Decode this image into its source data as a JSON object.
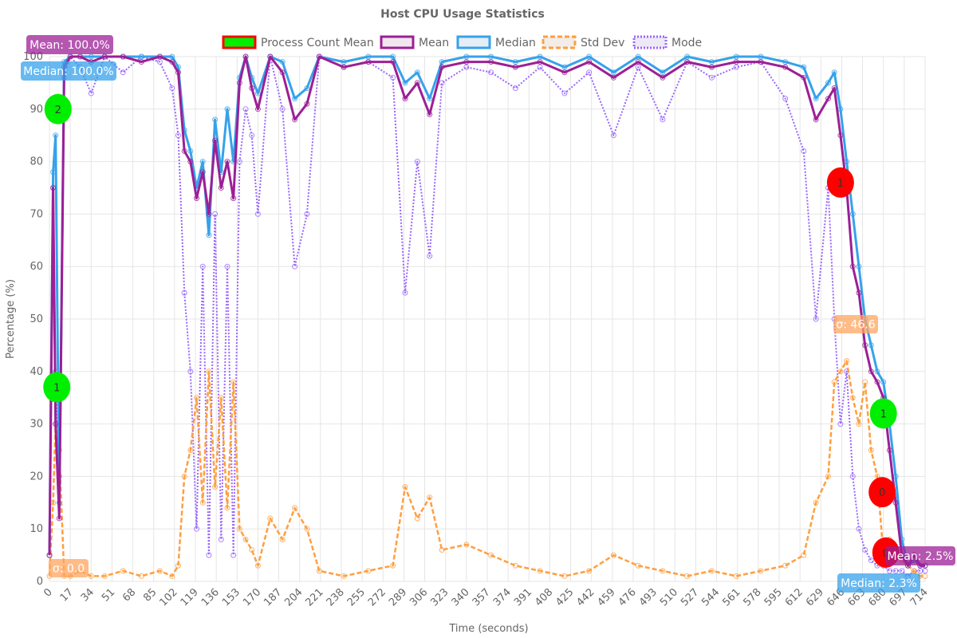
{
  "chart_data": {
    "type": "line",
    "title": "Host CPU Usage Statistics",
    "xlabel": "Time (seconds)",
    "ylabel": "Percentage (%)",
    "xlim": [
      0,
      714
    ],
    "ylim": [
      0,
      100
    ],
    "x_ticks": [
      0,
      17,
      34,
      51,
      68,
      85,
      102,
      119,
      136,
      153,
      170,
      187,
      204,
      221,
      238,
      255,
      272,
      289,
      306,
      323,
      340,
      357,
      374,
      391,
      408,
      425,
      442,
      459,
      476,
      493,
      510,
      527,
      544,
      561,
      578,
      595,
      612,
      629,
      646,
      663,
      680,
      697,
      714
    ],
    "y_ticks": [
      0,
      10,
      20,
      30,
      40,
      50,
      60,
      70,
      80,
      90,
      100
    ],
    "grid": true,
    "legend_position": "top-center",
    "legend": [
      {
        "name": "Process Count Mean",
        "stroke": "#ff0000",
        "fill": "#00ee00",
        "dash": "solid"
      },
      {
        "name": "Mean",
        "stroke": "#9c1f96",
        "fill": "#efe6ee",
        "dash": "solid"
      },
      {
        "name": "Median",
        "stroke": "#36a2eb",
        "fill": "#e6eef5",
        "dash": "solid"
      },
      {
        "name": "Std Dev",
        "stroke": "#ff9f40",
        "fill": "#f2ede8",
        "dash": "dashed"
      },
      {
        "name": "Mode",
        "stroke": "#9966ff",
        "fill": "#eeeaf5",
        "dash": "dotted"
      }
    ],
    "colors": {
      "mean": "#9c1f96",
      "median": "#36a2eb",
      "std": "#ff9f40",
      "mode": "#9966ff",
      "count_high": "#00ee00",
      "count_low": "#ff0000"
    },
    "series": [
      {
        "name": "Mean",
        "x": [
          0,
          3,
          5,
          8,
          12,
          17,
          25,
          34,
          45,
          60,
          75,
          90,
          100,
          105,
          110,
          115,
          120,
          125,
          130,
          135,
          140,
          145,
          150,
          155,
          160,
          165,
          170,
          180,
          190,
          200,
          210,
          220,
          240,
          260,
          280,
          290,
          300,
          310,
          320,
          340,
          360,
          380,
          400,
          420,
          440,
          460,
          480,
          500,
          520,
          540,
          560,
          580,
          600,
          615,
          625,
          635,
          640,
          645,
          650,
          655,
          660,
          665,
          670,
          675,
          680,
          685,
          690,
          695,
          700,
          705,
          710,
          714
        ],
        "y": [
          5,
          75,
          30,
          12,
          98,
          100,
          100,
          99,
          100,
          100,
          99,
          100,
          99,
          97,
          82,
          80,
          73,
          78,
          70,
          84,
          75,
          80,
          73,
          95,
          100,
          94,
          90,
          100,
          97,
          88,
          91,
          100,
          98,
          99,
          99,
          92,
          95,
          89,
          98,
          99,
          99,
          98,
          99,
          97,
          99,
          96,
          99,
          96,
          99,
          98,
          99,
          99,
          98,
          96,
          88,
          92,
          94,
          85,
          75,
          60,
          55,
          45,
          40,
          38,
          35,
          25,
          15,
          5,
          3,
          5,
          3,
          3
        ]
      },
      {
        "name": "Median",
        "x": [
          0,
          3,
          5,
          8,
          12,
          17,
          25,
          34,
          45,
          60,
          75,
          90,
          100,
          105,
          110,
          115,
          120,
          125,
          130,
          135,
          140,
          145,
          150,
          155,
          160,
          165,
          170,
          180,
          190,
          200,
          210,
          220,
          240,
          260,
          280,
          290,
          300,
          310,
          320,
          340,
          360,
          380,
          400,
          420,
          440,
          460,
          480,
          500,
          520,
          540,
          560,
          580,
          600,
          615,
          625,
          635,
          640,
          645,
          650,
          655,
          660,
          665,
          670,
          675,
          680,
          685,
          690,
          695,
          700,
          705,
          710,
          714
        ],
        "y": [
          5,
          78,
          85,
          15,
          99,
          100,
          100,
          100,
          100,
          100,
          100,
          100,
          100,
          98,
          86,
          82,
          75,
          80,
          66,
          88,
          78,
          90,
          80,
          96,
          100,
          96,
          93,
          100,
          99,
          92,
          94,
          100,
          99,
          100,
          100,
          95,
          97,
          92,
          99,
          100,
          100,
          99,
          100,
          98,
          100,
          97,
          100,
          97,
          100,
          99,
          100,
          100,
          99,
          98,
          92,
          95,
          97,
          90,
          80,
          70,
          60,
          50,
          45,
          40,
          38,
          30,
          20,
          8,
          3,
          4,
          3,
          3
        ]
      },
      {
        "name": "Std Dev",
        "x": [
          0,
          3,
          5,
          8,
          12,
          17,
          25,
          34,
          45,
          60,
          75,
          90,
          100,
          105,
          110,
          115,
          120,
          125,
          130,
          135,
          140,
          145,
          150,
          155,
          160,
          165,
          170,
          180,
          190,
          200,
          210,
          220,
          240,
          260,
          280,
          290,
          300,
          310,
          320,
          340,
          360,
          380,
          400,
          420,
          440,
          460,
          480,
          500,
          520,
          540,
          560,
          580,
          600,
          615,
          625,
          635,
          640,
          645,
          650,
          655,
          660,
          665,
          670,
          675,
          680,
          685,
          690,
          695,
          700,
          705,
          710,
          714
        ],
        "y": [
          1,
          15,
          30,
          25,
          1,
          1,
          2,
          1,
          1,
          2,
          1,
          2,
          1,
          3,
          20,
          25,
          35,
          15,
          40,
          18,
          35,
          14,
          38,
          10,
          8,
          6,
          3,
          12,
          8,
          14,
          10,
          2,
          1,
          2,
          3,
          18,
          12,
          16,
          6,
          7,
          5,
          3,
          2,
          1,
          2,
          5,
          3,
          2,
          1,
          2,
          1,
          2,
          3,
          5,
          15,
          20,
          38,
          40,
          42,
          35,
          30,
          38,
          25,
          20,
          5,
          8,
          6,
          4,
          3,
          2,
          1,
          1
        ]
      },
      {
        "name": "Mode",
        "x": [
          0,
          3,
          5,
          8,
          12,
          17,
          25,
          34,
          45,
          60,
          75,
          90,
          100,
          105,
          110,
          115,
          120,
          125,
          130,
          135,
          140,
          145,
          150,
          155,
          160,
          165,
          170,
          180,
          190,
          200,
          210,
          220,
          240,
          260,
          280,
          290,
          300,
          310,
          320,
          340,
          360,
          380,
          400,
          420,
          440,
          460,
          480,
          500,
          520,
          540,
          560,
          580,
          600,
          615,
          625,
          635,
          640,
          645,
          650,
          655,
          660,
          665,
          670,
          675,
          680,
          685,
          690,
          695,
          700,
          705,
          710,
          714
        ],
        "y": [
          5,
          75,
          40,
          20,
          96,
          100,
          98,
          93,
          100,
          97,
          100,
          99,
          94,
          85,
          55,
          40,
          10,
          60,
          5,
          70,
          8,
          60,
          5,
          80,
          90,
          85,
          70,
          100,
          90,
          60,
          70,
          100,
          98,
          99,
          96,
          55,
          80,
          62,
          95,
          98,
          97,
          94,
          98,
          93,
          97,
          85,
          98,
          88,
          99,
          96,
          98,
          99,
          92,
          82,
          50,
          75,
          50,
          30,
          40,
          20,
          10,
          6,
          4,
          3,
          3,
          2,
          2,
          2,
          1,
          2,
          2,
          2
        ]
      }
    ],
    "process_count_markers": [
      {
        "x": 7,
        "y": 90,
        "label": "2",
        "level": "high"
      },
      {
        "x": 6,
        "y": 37,
        "label": "1",
        "level": "high"
      },
      {
        "x": 645,
        "y": 76,
        "label": "1",
        "level": "low"
      },
      {
        "x": 680,
        "y": 32,
        "label": "1",
        "level": "high"
      },
      {
        "x": 679,
        "y": 17,
        "label": "0",
        "level": "low"
      },
      {
        "x": 682,
        "y": 5.5,
        "label": "0",
        "level": "low"
      }
    ],
    "annotations": [
      {
        "text": "Mean: 100.0%",
        "color": "#9c1f96"
      },
      {
        "text": "Median: 100.0%",
        "color": "#36a2eb"
      },
      {
        "text": "σ: 0.0",
        "color": "#ffa560"
      },
      {
        "text": "σ: 46.6",
        "color": "#ffa560"
      },
      {
        "text": "Mean: 2.5%",
        "color": "#9c1f96"
      },
      {
        "text": "Median: 2.3%",
        "color": "#36a2eb"
      }
    ]
  }
}
